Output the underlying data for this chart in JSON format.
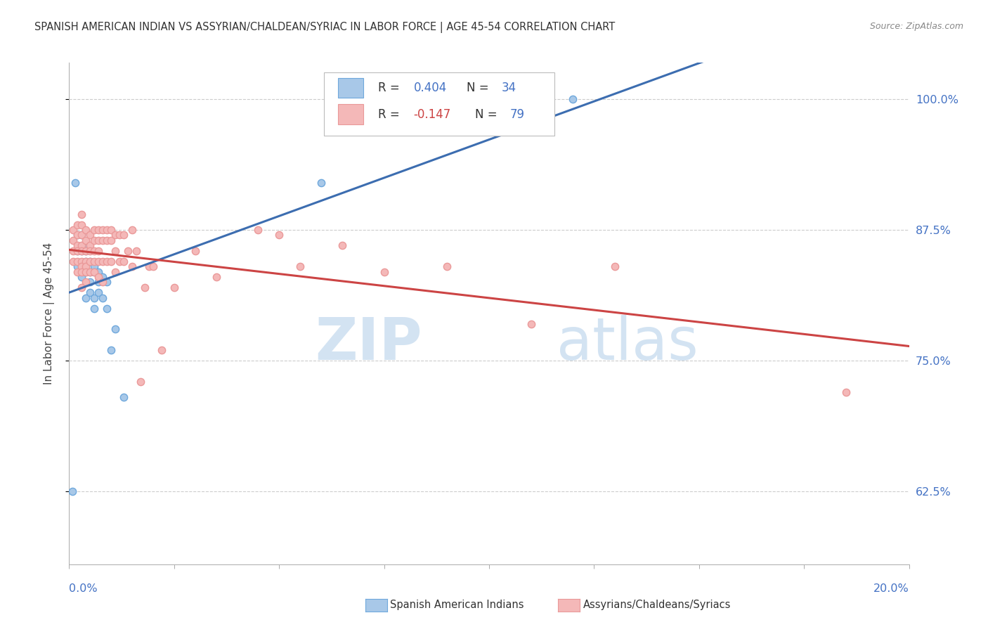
{
  "title": "SPANISH AMERICAN INDIAN VS ASSYRIAN/CHALDEAN/SYRIAC IN LABOR FORCE | AGE 45-54 CORRELATION CHART",
  "source": "Source: ZipAtlas.com",
  "ylabel": "In Labor Force | Age 45-54",
  "label1": "Spanish American Indians",
  "label2": "Assyrians/Chaldeans/Syriacs",
  "blue_color": "#6fa8dc",
  "pink_color": "#ea9999",
  "blue_line_color": "#3c6db0",
  "pink_line_color": "#cc4444",
  "blue_scatter_facecolor": "#a8c8e8",
  "pink_scatter_facecolor": "#f4b8b8",
  "xmin": 0.0,
  "xmax": 0.2,
  "ymin": 0.555,
  "ymax": 1.035,
  "yticks": [
    0.625,
    0.75,
    0.875,
    1.0
  ],
  "ytick_labels": [
    "62.5%",
    "75.0%",
    "87.5%",
    "100.0%"
  ],
  "blue_x": [
    0.0008,
    0.0015,
    0.002,
    0.002,
    0.002,
    0.003,
    0.003,
    0.003,
    0.003,
    0.004,
    0.004,
    0.004,
    0.004,
    0.004,
    0.005,
    0.005,
    0.005,
    0.005,
    0.006,
    0.006,
    0.006,
    0.006,
    0.007,
    0.007,
    0.007,
    0.008,
    0.008,
    0.009,
    0.009,
    0.01,
    0.011,
    0.013,
    0.06,
    0.12
  ],
  "blue_y": [
    0.625,
    0.92,
    0.87,
    0.855,
    0.84,
    0.87,
    0.855,
    0.84,
    0.83,
    0.86,
    0.855,
    0.845,
    0.835,
    0.81,
    0.845,
    0.835,
    0.825,
    0.815,
    0.84,
    0.835,
    0.81,
    0.8,
    0.835,
    0.825,
    0.815,
    0.83,
    0.81,
    0.825,
    0.8,
    0.76,
    0.78,
    0.715,
    0.92,
    1.0
  ],
  "pink_x": [
    0.001,
    0.001,
    0.001,
    0.001,
    0.002,
    0.002,
    0.002,
    0.002,
    0.002,
    0.002,
    0.003,
    0.003,
    0.003,
    0.003,
    0.003,
    0.003,
    0.003,
    0.003,
    0.003,
    0.004,
    0.004,
    0.004,
    0.004,
    0.004,
    0.004,
    0.004,
    0.005,
    0.005,
    0.005,
    0.005,
    0.005,
    0.006,
    0.006,
    0.006,
    0.006,
    0.006,
    0.007,
    0.007,
    0.007,
    0.007,
    0.007,
    0.008,
    0.008,
    0.008,
    0.008,
    0.009,
    0.009,
    0.009,
    0.01,
    0.01,
    0.01,
    0.011,
    0.011,
    0.011,
    0.012,
    0.012,
    0.013,
    0.013,
    0.014,
    0.015,
    0.015,
    0.016,
    0.017,
    0.018,
    0.019,
    0.02,
    0.022,
    0.025,
    0.03,
    0.035,
    0.045,
    0.05,
    0.055,
    0.065,
    0.075,
    0.09,
    0.11,
    0.13,
    0.185
  ],
  "pink_y": [
    0.875,
    0.865,
    0.855,
    0.845,
    0.88,
    0.87,
    0.86,
    0.855,
    0.845,
    0.835,
    0.89,
    0.88,
    0.87,
    0.86,
    0.855,
    0.845,
    0.84,
    0.835,
    0.82,
    0.875,
    0.865,
    0.855,
    0.845,
    0.84,
    0.835,
    0.825,
    0.87,
    0.86,
    0.855,
    0.845,
    0.835,
    0.875,
    0.865,
    0.855,
    0.845,
    0.835,
    0.875,
    0.865,
    0.855,
    0.845,
    0.83,
    0.875,
    0.865,
    0.845,
    0.825,
    0.875,
    0.865,
    0.845,
    0.875,
    0.865,
    0.845,
    0.87,
    0.855,
    0.835,
    0.87,
    0.845,
    0.87,
    0.845,
    0.855,
    0.875,
    0.84,
    0.855,
    0.73,
    0.82,
    0.84,
    0.84,
    0.76,
    0.82,
    0.855,
    0.83,
    0.875,
    0.87,
    0.84,
    0.86,
    0.835,
    0.84,
    0.785,
    0.84,
    0.72
  ]
}
